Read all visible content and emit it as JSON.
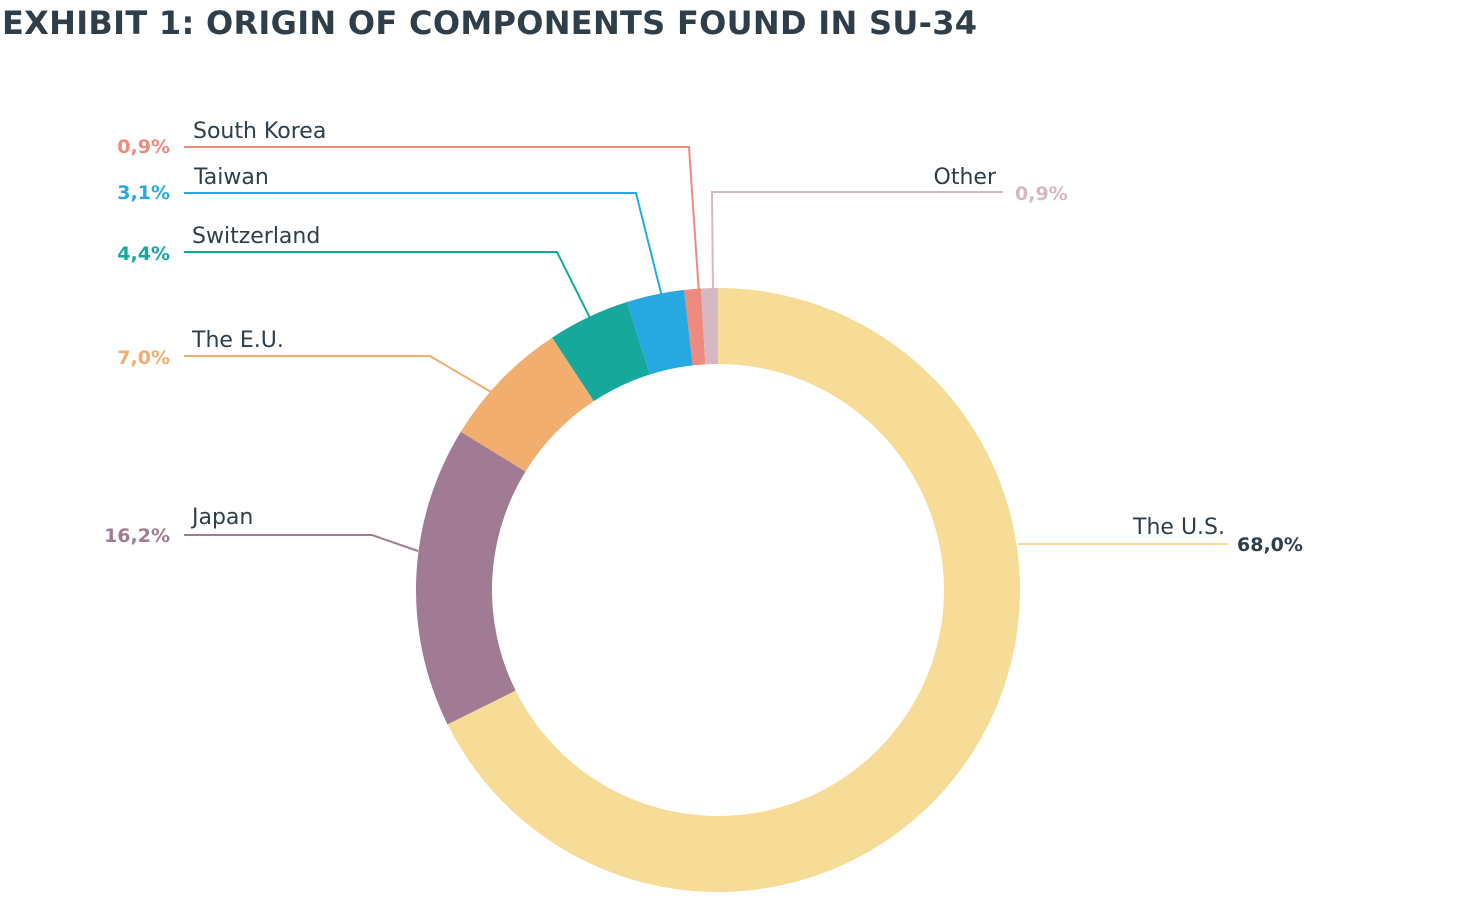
{
  "title": "EXHIBIT 1: ORIGIN OF COMPONENTS FOUND IN SU-34",
  "chart_data": {
    "type": "pie",
    "variant": "donut",
    "title": "EXHIBIT 1: ORIGIN OF COMPONENTS FOUND IN SU-34",
    "slices": [
      {
        "label": "The U.S.",
        "value": 68.0,
        "value_label": "68,0%",
        "color": "#f7dc98",
        "value_color": "#2f3e48"
      },
      {
        "label": "Japan",
        "value": 16.2,
        "value_label": "16,2%",
        "color": "#a17b94",
        "value_color": "#a17b94"
      },
      {
        "label": "The E.U.",
        "value": 7.0,
        "value_label": "7,0%",
        "color": "#f2ae6f",
        "value_color": "#f2ae6f"
      },
      {
        "label": "Switzerland",
        "value": 4.4,
        "value_label": "4,4%",
        "color": "#17a89c",
        "value_color": "#17a89c"
      },
      {
        "label": "Taiwan",
        "value": 3.1,
        "value_label": "3,1%",
        "color": "#25a9e0",
        "value_color": "#25a9e0"
      },
      {
        "label": "South Korea",
        "value": 0.9,
        "value_label": "0,9%",
        "color": "#ef8a7e",
        "value_color": "#ef8a7e"
      },
      {
        "label": "Other",
        "value": 0.9,
        "value_label": "0,9%",
        "color": "#d5b8c4",
        "value_color": "#d5b8c4"
      }
    ]
  }
}
